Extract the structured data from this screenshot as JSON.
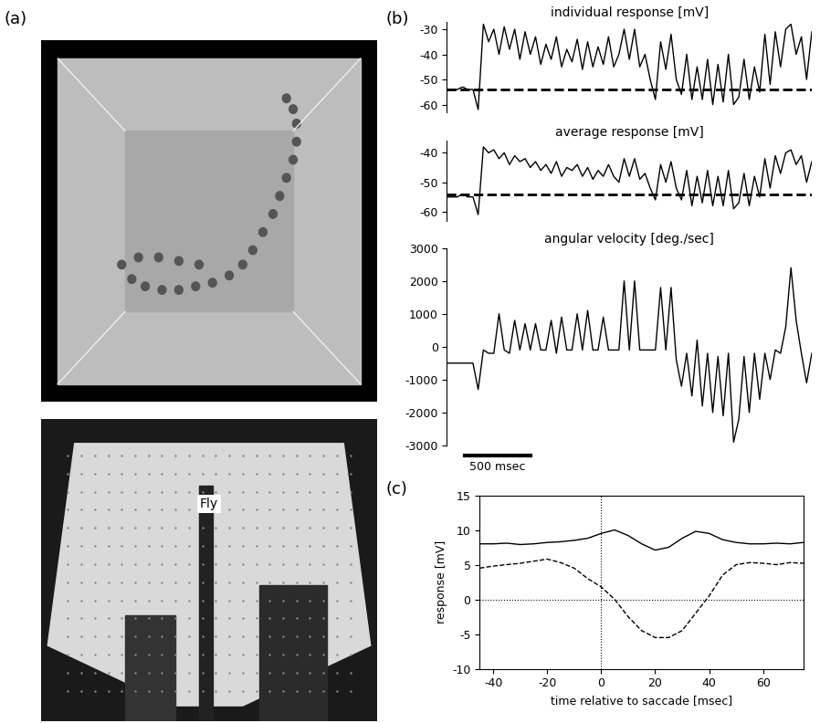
{
  "figure": {
    "panel_labels": [
      "(a)",
      "(b)",
      "(c)"
    ],
    "image_label": "Fly"
  },
  "chart_data": [
    {
      "type": "line",
      "title": "individual response [mV]",
      "tick_labels": "y",
      "xlim": [
        0,
        2800
      ],
      "ylim": [
        -63,
        -27
      ],
      "yticks": [
        -60,
        -50,
        -40,
        -30
      ],
      "reference_lines": {
        "y": [
          -54
        ],
        "line_style": "dashed"
      },
      "x": [
        0,
        40,
        80,
        120,
        160,
        200,
        240,
        280,
        320,
        360,
        400,
        440,
        480,
        520,
        560,
        600,
        640,
        680,
        720,
        760,
        800,
        840,
        880,
        920,
        960,
        1000,
        1040,
        1080,
        1120,
        1160,
        1200,
        1240,
        1280,
        1320,
        1360,
        1400,
        1440,
        1480,
        1520,
        1560,
        1600,
        1640,
        1680,
        1720,
        1760,
        1800,
        1840,
        1880,
        1920,
        1960,
        2000,
        2040,
        2080,
        2120,
        2160,
        2200,
        2240,
        2280,
        2320,
        2360,
        2400,
        2440,
        2480,
        2520,
        2560,
        2600,
        2640,
        2680,
        2720,
        2760,
        2800
      ],
      "series": [
        {
          "color": "#000000",
          "line_style": "solid",
          "values": [
            -54,
            -54,
            -54,
            -53,
            -54,
            -54,
            -62,
            -28,
            -35,
            -30,
            -40,
            -29,
            -38,
            -30,
            -42,
            -31,
            -40,
            -33,
            -44,
            -36,
            -42,
            -33,
            -45,
            -38,
            -43,
            -34,
            -46,
            -35,
            -45,
            -37,
            -44,
            -33,
            -45,
            -40,
            -30,
            -42,
            -30,
            -45,
            -40,
            -50,
            -58,
            -35,
            -46,
            -32,
            -50,
            -56,
            -40,
            -58,
            -45,
            -58,
            -42,
            -60,
            -44,
            -59,
            -40,
            -60,
            -57,
            -42,
            -58,
            -45,
            -55,
            -32,
            -52,
            -31,
            -45,
            -30,
            -28,
            -40,
            -33,
            -50,
            -31
          ]
        }
      ]
    },
    {
      "type": "line",
      "title": "average response [mV]",
      "tick_labels": "y",
      "xlim": [
        0,
        2800
      ],
      "ylim": [
        -63,
        -36
      ],
      "yticks": [
        -60,
        -50,
        -40
      ],
      "reference_lines": {
        "y": [
          -54
        ],
        "line_style": "dashed"
      },
      "x": [
        0,
        40,
        80,
        120,
        160,
        200,
        240,
        280,
        320,
        360,
        400,
        440,
        480,
        520,
        560,
        600,
        640,
        680,
        720,
        760,
        800,
        840,
        880,
        920,
        960,
        1000,
        1040,
        1080,
        1120,
        1160,
        1200,
        1240,
        1280,
        1320,
        1360,
        1400,
        1440,
        1480,
        1520,
        1560,
        1600,
        1640,
        1680,
        1720,
        1760,
        1800,
        1840,
        1880,
        1920,
        1960,
        2000,
        2040,
        2080,
        2120,
        2160,
        2200,
        2240,
        2280,
        2320,
        2360,
        2400,
        2440,
        2480,
        2520,
        2560,
        2600,
        2640,
        2680,
        2720,
        2760,
        2800
      ],
      "series": [
        {
          "color": "#000000",
          "line_style": "solid",
          "values": [
            -55,
            -55,
            -55,
            -54,
            -55,
            -55,
            -61,
            -38,
            -40,
            -39,
            -42,
            -40,
            -44,
            -41,
            -43,
            -42,
            -45,
            -43,
            -46,
            -44,
            -47,
            -43,
            -48,
            -45,
            -46,
            -44,
            -48,
            -45,
            -49,
            -46,
            -48,
            -44,
            -48,
            -50,
            -42,
            -48,
            -42,
            -49,
            -47,
            -52,
            -56,
            -44,
            -50,
            -43,
            -52,
            -56,
            -46,
            -58,
            -48,
            -57,
            -46,
            -58,
            -48,
            -58,
            -46,
            -59,
            -57,
            -47,
            -58,
            -48,
            -55,
            -42,
            -52,
            -41,
            -47,
            -40,
            -39,
            -44,
            -41,
            -50,
            -43
          ]
        }
      ]
    },
    {
      "type": "line",
      "title": "angular velocity [deg./sec]",
      "tick_labels": "y",
      "xlim": [
        0,
        2800
      ],
      "ylim": [
        -3000,
        3000
      ],
      "yticks": [
        -3000,
        -2000,
        -1000,
        0,
        1000,
        2000,
        3000
      ],
      "scale_bar": {
        "value": 500,
        "label": "500 msec"
      },
      "x": [
        0,
        40,
        80,
        120,
        160,
        200,
        240,
        280,
        320,
        360,
        400,
        440,
        480,
        520,
        560,
        600,
        640,
        680,
        720,
        760,
        800,
        840,
        880,
        920,
        960,
        1000,
        1040,
        1080,
        1120,
        1160,
        1200,
        1240,
        1280,
        1320,
        1360,
        1400,
        1440,
        1480,
        1520,
        1560,
        1600,
        1640,
        1680,
        1720,
        1760,
        1800,
        1840,
        1880,
        1920,
        1960,
        2000,
        2040,
        2080,
        2120,
        2160,
        2200,
        2240,
        2280,
        2320,
        2360,
        2400,
        2440,
        2480,
        2520,
        2560,
        2600,
        2640,
        2680,
        2720,
        2760,
        2800
      ],
      "series": [
        {
          "color": "#000000",
          "line_style": "solid",
          "values": [
            -500,
            -500,
            -500,
            -500,
            -500,
            -500,
            -1300,
            -100,
            -200,
            -200,
            1000,
            -100,
            -200,
            800,
            -100,
            700,
            -100,
            700,
            -100,
            -100,
            800,
            -200,
            900,
            -100,
            -100,
            1000,
            -100,
            1100,
            -100,
            -100,
            900,
            -100,
            -100,
            -100,
            2000,
            -100,
            2000,
            -100,
            -100,
            -100,
            -100,
            1800,
            -100,
            1800,
            -400,
            -1200,
            -200,
            -1500,
            200,
            -1800,
            -200,
            -2000,
            -300,
            -2100,
            -200,
            -2900,
            -2200,
            -300,
            -2000,
            -200,
            -1600,
            -200,
            -1000,
            -100,
            -200,
            600,
            2400,
            800,
            -200,
            -1100,
            -200
          ]
        }
      ]
    },
    {
      "type": "line",
      "x_label": "time relative to saccade [msec]",
      "y_label": "response [mV]",
      "xlim": [
        -45,
        75
      ],
      "ylim": [
        -10,
        15
      ],
      "xticks": [
        -40,
        -20,
        0,
        20,
        40,
        60
      ],
      "yticks": [
        -10,
        -5,
        0,
        5,
        10,
        15
      ],
      "reference_lines": {
        "x": [
          0
        ],
        "y": [
          0
        ],
        "line_style": "dotted"
      },
      "x": [
        -45,
        -40,
        -35,
        -30,
        -25,
        -20,
        -15,
        -10,
        -5,
        0,
        5,
        10,
        15,
        20,
        25,
        30,
        35,
        40,
        45,
        50,
        55,
        60,
        65,
        70,
        75
      ],
      "series": [
        {
          "color": "#000000",
          "line_style": "solid",
          "values": [
            8,
            8,
            8.1,
            7.9,
            8,
            8.2,
            8.3,
            8.5,
            8.8,
            9.5,
            10,
            9.2,
            8,
            7.1,
            7.5,
            8.8,
            9.8,
            9.5,
            8.6,
            8.2,
            8,
            8,
            8.1,
            8,
            8.2
          ]
        },
        {
          "color": "#000000",
          "line_style": "dashed",
          "values": [
            4.5,
            4.8,
            5,
            5.2,
            5.5,
            5.8,
            5.3,
            4.5,
            3,
            1.8,
            0,
            -2.5,
            -4.5,
            -5.5,
            -5.5,
            -4.5,
            -2,
            0.5,
            3.5,
            5,
            5.3,
            5.2,
            5,
            5.3,
            5.2
          ]
        }
      ]
    }
  ]
}
